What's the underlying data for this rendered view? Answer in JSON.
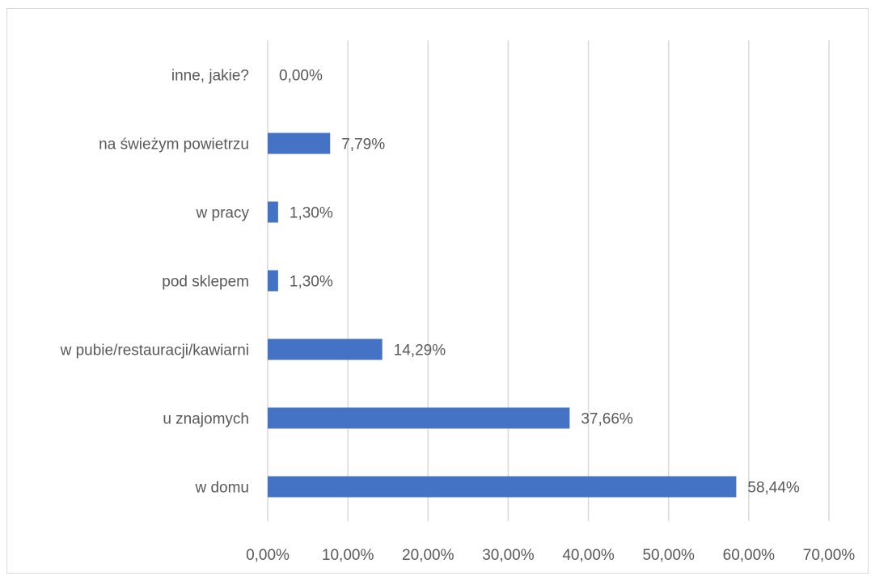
{
  "chart_data": {
    "type": "bar",
    "orientation": "horizontal",
    "title": "",
    "xlabel": "",
    "ylabel": "",
    "categories": [
      "w domu",
      "u znajomych",
      "w pubie/restauracji/kawiarni",
      "pod sklepem",
      "w pracy",
      "na świeżym powietrzu",
      "inne, jakie?"
    ],
    "values": [
      58.44,
      37.66,
      14.29,
      1.3,
      1.3,
      7.79,
      0.0
    ],
    "data_labels": [
      "58,44%",
      "37,66%",
      "14,29%",
      "1,30%",
      "1,30%",
      "7,79%",
      "0,00%"
    ],
    "xlim": [
      0,
      70
    ],
    "xticks": [
      0,
      10,
      20,
      30,
      40,
      50,
      60,
      70
    ],
    "xtick_labels": [
      "0,00%",
      "10,00%",
      "20,00%",
      "30,00%",
      "40,00%",
      "50,00%",
      "60,00%",
      "70,00%"
    ],
    "grid": "vertical",
    "legend": "none",
    "bar_color": "#4472c4",
    "grid_color": "#d9d9d9",
    "text_color": "#595959"
  }
}
